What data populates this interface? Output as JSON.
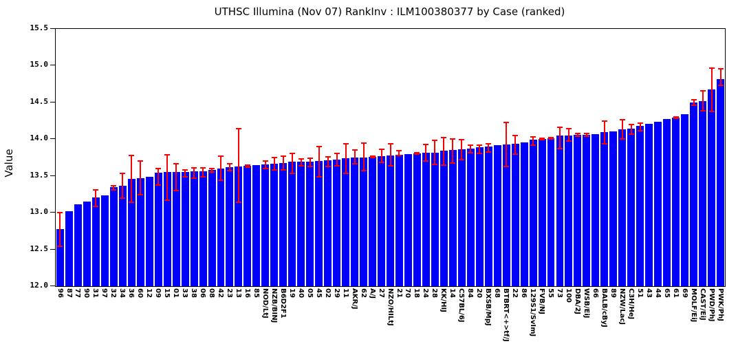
{
  "chart_data": {
    "type": "bar",
    "title": "UTHSC Illumina (Nov 07) RankInv : ILM100380377 by Case (ranked)",
    "ylabel": "Value",
    "xlabel": "",
    "ylim": [
      12.0,
      15.5
    ],
    "y_ticks": [
      "12.0",
      "12.5",
      "13.0",
      "13.5",
      "14.0",
      "14.5",
      "15.0",
      "15.5"
    ],
    "grid": "off",
    "legend": "none",
    "bar_color": "#0000FF",
    "error_color": "#FF0000",
    "categories": [
      "96",
      "87",
      "77",
      "90",
      "31",
      "97",
      "32",
      "34",
      "36",
      "60",
      "12",
      "09",
      "15",
      "01",
      "33",
      "38",
      "06",
      "08",
      "42",
      "23",
      "13",
      "16",
      "85",
      "NOD/LtJ",
      "NZB/BINJ",
      "B6D2F1",
      "19",
      "40",
      "05",
      "45",
      "02",
      "29",
      "11",
      "AKR/J",
      "62",
      "A/J",
      "27",
      "NZO/HILtJ",
      "21",
      "70",
      "18",
      "24",
      "28",
      "KK/HIJ",
      "14",
      "C57BL/6J",
      "84",
      "20",
      "BXSB/MpJ",
      "68",
      "BTBRT<+>tf/J",
      "22",
      "86",
      "129S1/SvImJ",
      "FVB/NJ",
      "55",
      "73",
      "100",
      "DBA/2J",
      "WSB/EiJ",
      "66",
      "BALB/cByJ",
      "89",
      "NZW/LacJ",
      "C3H/HeJ",
      "51",
      "43",
      "44",
      "65",
      "61",
      "69",
      "MOLF/EiJ",
      "CAST/EiJ",
      "PWD/PhJ",
      "PWK/PhJ"
    ],
    "values": [
      12.78,
      13.02,
      13.11,
      13.15,
      13.21,
      13.24,
      13.35,
      13.37,
      13.46,
      13.47,
      13.49,
      13.54,
      13.55,
      13.55,
      13.55,
      13.56,
      13.56,
      13.58,
      13.6,
      13.62,
      13.63,
      13.64,
      13.65,
      13.66,
      13.67,
      13.68,
      13.69,
      13.69,
      13.69,
      13.7,
      13.71,
      13.72,
      13.74,
      13.75,
      13.75,
      13.76,
      13.77,
      13.78,
      13.79,
      13.8,
      13.81,
      13.82,
      13.82,
      13.84,
      13.85,
      13.86,
      13.87,
      13.89,
      13.9,
      13.92,
      13.93,
      13.94,
      13.96,
      13.99,
      14.0,
      14.01,
      14.05,
      14.05,
      14.06,
      14.06,
      14.07,
      14.1,
      14.11,
      14.13,
      14.14,
      14.18,
      14.21,
      14.24,
      14.27,
      14.29,
      14.34,
      14.5,
      14.52,
      14.68,
      14.82
    ],
    "error_bars": [
      [
        12.53,
        13.01
      ],
      null,
      null,
      null,
      [
        13.08,
        13.32
      ],
      null,
      [
        13.3,
        13.38
      ],
      [
        13.19,
        13.54
      ],
      [
        13.13,
        13.79
      ],
      [
        13.24,
        13.71
      ],
      null,
      [
        13.37,
        13.61
      ],
      [
        13.16,
        13.8
      ],
      [
        13.29,
        13.68
      ],
      [
        13.48,
        13.59
      ],
      [
        13.46,
        13.62
      ],
      [
        13.48,
        13.62
      ],
      [
        13.54,
        13.61
      ],
      [
        13.43,
        13.78
      ],
      [
        13.56,
        13.68
      ],
      [
        13.13,
        14.15
      ],
      [
        13.61,
        13.66
      ],
      null,
      [
        13.59,
        13.71
      ],
      [
        13.57,
        13.76
      ],
      [
        13.57,
        13.78
      ],
      [
        13.53,
        13.82
      ],
      [
        13.63,
        13.74
      ],
      [
        13.62,
        13.75
      ],
      [
        13.48,
        13.91
      ],
      [
        13.62,
        13.77
      ],
      [
        13.63,
        13.82
      ],
      [
        13.53,
        13.95
      ],
      [
        13.66,
        13.86
      ],
      [
        13.56,
        13.96
      ],
      [
        13.74,
        13.78
      ],
      [
        13.68,
        13.87
      ],
      [
        13.63,
        13.95
      ],
      [
        13.77,
        13.85
      ],
      null,
      [
        13.79,
        13.83
      ],
      [
        13.69,
        13.94
      ],
      [
        13.65,
        13.99
      ],
      [
        13.64,
        14.03
      ],
      [
        13.67,
        14.01
      ],
      [
        13.71,
        14.0
      ],
      [
        13.81,
        13.93
      ],
      [
        13.8,
        13.93
      ],
      [
        13.82,
        13.95
      ],
      null,
      [
        13.62,
        14.24
      ],
      [
        13.79,
        14.06
      ],
      null,
      [
        13.91,
        14.04
      ],
      [
        13.98,
        14.02
      ],
      [
        13.99,
        14.03
      ],
      [
        13.86,
        14.17
      ],
      [
        13.97,
        14.15
      ],
      [
        14.03,
        14.09
      ],
      [
        14.03,
        14.09
      ],
      null,
      [
        13.93,
        14.26
      ],
      null,
      [
        13.99,
        14.27
      ],
      [
        14.06,
        14.21
      ],
      [
        14.11,
        14.23
      ],
      null,
      null,
      null,
      [
        14.27,
        14.31
      ],
      null,
      [
        14.45,
        14.55
      ],
      [
        14.38,
        14.67
      ],
      [
        14.37,
        14.98
      ],
      [
        14.72,
        14.97
      ]
    ]
  }
}
